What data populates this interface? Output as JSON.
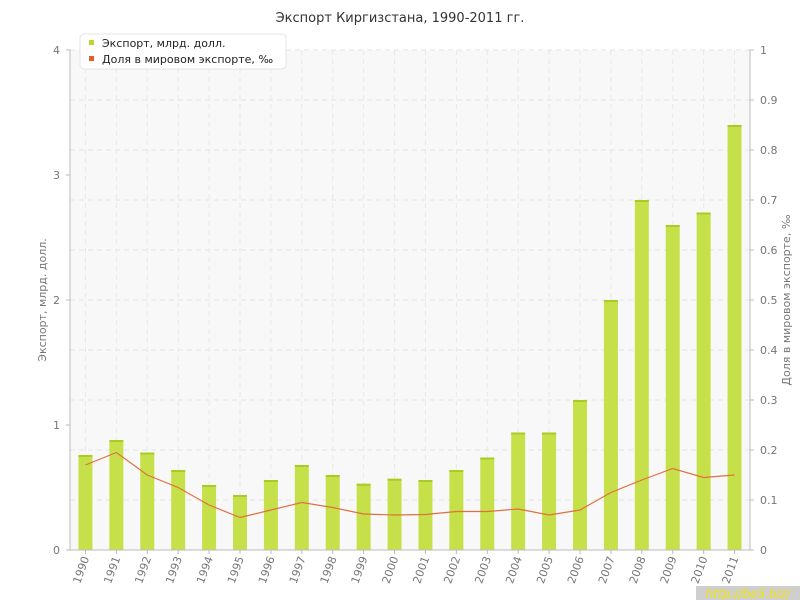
{
  "chart_data": {
    "type": "bar",
    "title": "Экспорт Киргизстана, 1990-2011 гг.",
    "ylabel": "Экспорт, млрд. долл.",
    "y2label": "Доля в мировом экспорте, ‰",
    "ylim": [
      0,
      4
    ],
    "y2lim": [
      0,
      1
    ],
    "yticks": [
      "0",
      "1",
      "2",
      "3",
      "4"
    ],
    "y2ticks": [
      "0",
      "0.1",
      "0.2",
      "0.3",
      "0.4",
      "0.5",
      "0.6",
      "0.7",
      "0.8",
      "0.9",
      "1"
    ],
    "grid": true,
    "legend_position": "top-left",
    "categories": [
      "1990",
      "1991",
      "1992",
      "1993",
      "1994",
      "1995",
      "1996",
      "1997",
      "1998",
      "1999",
      "2000",
      "2001",
      "2002",
      "2003",
      "2004",
      "2005",
      "2006",
      "2007",
      "2008",
      "2009",
      "2010",
      "2011"
    ],
    "series": [
      {
        "name": "Экспорт, млрд. долл.",
        "type": "bar",
        "axis": "left",
        "color": "#c6e04a",
        "values": [
          0.76,
          0.88,
          0.78,
          0.64,
          0.52,
          0.44,
          0.56,
          0.68,
          0.6,
          0.53,
          0.57,
          0.56,
          0.64,
          0.74,
          0.94,
          0.94,
          1.2,
          2.0,
          2.8,
          2.6,
          2.7,
          3.4
        ]
      },
      {
        "name": "Доля в мировом экспорте, ‰",
        "type": "line",
        "axis": "right",
        "color": "#e07040",
        "values": [
          0.17,
          0.195,
          0.15,
          0.125,
          0.09,
          0.065,
          0.08,
          0.095,
          0.085,
          0.072,
          0.07,
          0.071,
          0.077,
          0.077,
          0.082,
          0.07,
          0.08,
          0.115,
          0.14,
          0.163,
          0.145,
          0.15
        ]
      }
    ]
  },
  "watermark": "http://be5.biz/"
}
